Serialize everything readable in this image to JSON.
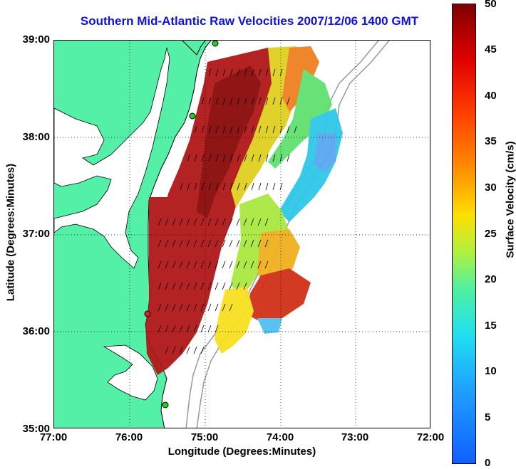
{
  "title": "Southern Mid-Atlantic Raw Velocities 2007/12/06 1400 GMT",
  "map": {
    "x_label": "Longitude (Degrees:Minutes)",
    "y_label": "Latitude (Degrees:Minutes)",
    "x_ticks": [
      "77:00",
      "76:00",
      "75:00",
      "74:00",
      "73:00",
      "72:00"
    ],
    "y_ticks": [
      "39:00",
      "38:00",
      "37:00",
      "36:00",
      "35:00"
    ],
    "land_color": "#55f0a8",
    "grid": "dotted"
  },
  "colorbar": {
    "label": "Surface Velocity (cm/s)",
    "ticks": [
      "50",
      "45",
      "40",
      "35",
      "30",
      "25",
      "20",
      "15",
      "10",
      "5",
      "0"
    ],
    "range": [
      0,
      50
    ]
  },
  "chart_data": {
    "type": "heatmap",
    "title": "Southern Mid-Atlantic Raw Velocities 2007/12/06 1400 GMT",
    "xlabel": "Longitude (Degrees:Minutes)",
    "ylabel": "Latitude (Degrees:Minutes)",
    "xlim": [
      -77,
      -72
    ],
    "ylim": [
      35,
      39
    ],
    "colorbar_label": "Surface Velocity (cm/s)",
    "color_range": [
      0,
      50
    ],
    "stations": [
      {
        "lon": -74.9,
        "lat": 38.97
      },
      {
        "lon": -75.15,
        "lat": 38.22
      },
      {
        "lon": -75.72,
        "lat": 36.18
      },
      {
        "lon": -75.53,
        "lat": 35.24
      }
    ]
  }
}
